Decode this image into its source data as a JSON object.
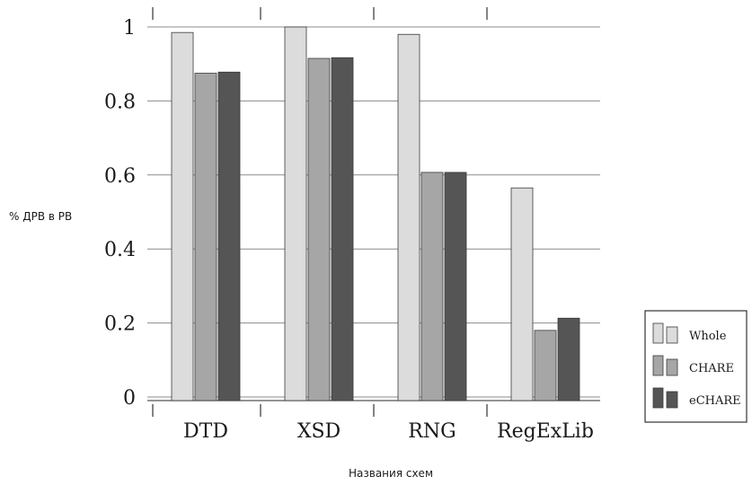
{
  "chart_data": {
    "type": "bar",
    "categories": [
      "DTD",
      "XSD",
      "RNG",
      "RegExLib"
    ],
    "series": [
      {
        "name": "Whole",
        "values": [
          0.985,
          1.0,
          0.98,
          0.565
        ],
        "color": "#dcdcdc"
      },
      {
        "name": "CHARE",
        "values": [
          0.875,
          0.915,
          0.607,
          0.18
        ],
        "color": "#a6a6a6"
      },
      {
        "name": "eCHARE",
        "values": [
          0.878,
          0.917,
          0.607,
          0.213
        ],
        "color": "#555555"
      }
    ],
    "ylim": [
      0,
      1
    ],
    "yticks": [
      0,
      0.2,
      0.4,
      0.6,
      0.8,
      1
    ],
    "ytick_labels": [
      "0",
      "0.2",
      "0.4",
      "0.6",
      "0.8",
      "1"
    ],
    "ylabel": "% ДРВ в РВ",
    "xlabel": "Названия схем",
    "grid": true,
    "legend_position": "right"
  }
}
